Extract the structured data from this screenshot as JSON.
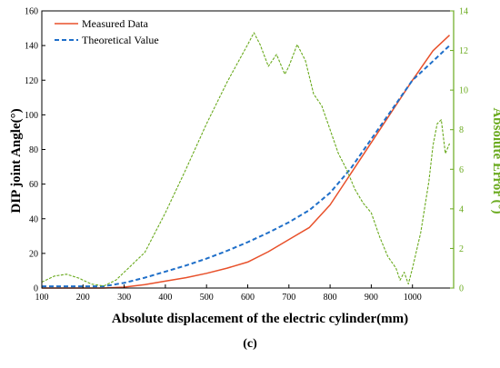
{
  "panel_label": "(c)",
  "chart_data": {
    "type": "line",
    "xlabel": "Absolute displacement of the electric cylinder(mm)",
    "ylabel": "DIP joint Angle(°)",
    "y2label": "Absolute Error (°)",
    "xlim": [
      100,
      1100
    ],
    "ylim": [
      0,
      160
    ],
    "y2lim": [
      0,
      14
    ],
    "x_ticks": [
      "100",
      "200",
      "300",
      "400",
      "500",
      "600",
      "700",
      "800",
      "900",
      "1000"
    ],
    "y_ticks": [
      "0",
      "20",
      "40",
      "60",
      "80",
      "100",
      "120",
      "140",
      "160"
    ],
    "y2_ticks": [
      "0",
      "2",
      "4",
      "6",
      "8",
      "10",
      "12",
      "14"
    ],
    "legend_position": "top-left",
    "colors": {
      "measured": "#e8502a",
      "theoretical": "#1f6fc9",
      "error": "#6aaa1e",
      "right_axis": "#6aaa1e"
    },
    "series": [
      {
        "name": "Measured Data",
        "axis": "left",
        "x": [
          100,
          200,
          250,
          300,
          350,
          400,
          450,
          500,
          550,
          600,
          650,
          700,
          750,
          800,
          850,
          900,
          950,
          1000,
          1050,
          1090
        ],
        "y": [
          0,
          0,
          0,
          0.5,
          2,
          4,
          6,
          8.5,
          11.5,
          15,
          21,
          28,
          35,
          48,
          66,
          84,
          102,
          120,
          137,
          146
        ]
      },
      {
        "name": "Theoretical Value",
        "axis": "left",
        "x": [
          100,
          200,
          250,
          300,
          350,
          400,
          450,
          500,
          550,
          600,
          650,
          700,
          750,
          800,
          850,
          900,
          950,
          1000,
          1050,
          1090
        ],
        "y": [
          1,
          1,
          1,
          3,
          6,
          9.5,
          13,
          17,
          21.5,
          26.5,
          32,
          38,
          45,
          55,
          69,
          86,
          103,
          120,
          131,
          140
        ]
      },
      {
        "name": "Absolute Error",
        "axis": "right",
        "x": [
          100,
          130,
          160,
          190,
          220,
          250,
          280,
          300,
          350,
          400,
          450,
          500,
          550,
          600,
          615,
          630,
          650,
          670,
          690,
          700,
          720,
          740,
          760,
          780,
          800,
          820,
          840,
          860,
          880,
          900,
          920,
          940,
          960,
          970,
          980,
          990,
          1000,
          1020,
          1040,
          1050,
          1060,
          1070,
          1080,
          1090
        ],
        "y": [
          0.3,
          0.6,
          0.7,
          0.5,
          0.2,
          0.1,
          0.4,
          0.8,
          1.8,
          3.8,
          6.0,
          8.3,
          10.4,
          12.3,
          12.9,
          12.3,
          11.2,
          11.8,
          10.8,
          11.2,
          12.3,
          11.5,
          9.8,
          9.2,
          8.0,
          6.8,
          6.0,
          5.0,
          4.3,
          3.8,
          2.6,
          1.6,
          1.0,
          0.4,
          0.8,
          0.2,
          1.0,
          2.8,
          5.4,
          7.2,
          8.3,
          8.5,
          6.8,
          7.3
        ]
      }
    ]
  }
}
